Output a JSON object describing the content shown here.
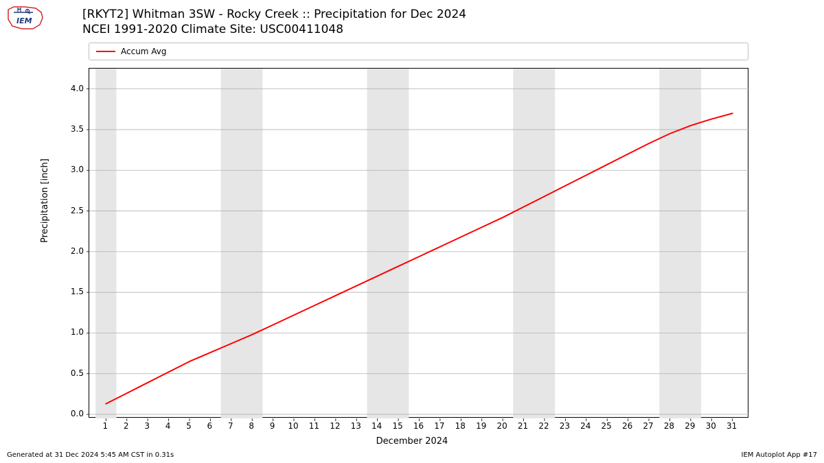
{
  "logo_text": "IEM",
  "logo_colors": {
    "outline": "#d62728",
    "symbol": "#1f3a7a",
    "text": "#1f3a7a"
  },
  "title_line1": "[RKYT2] Whitman 3SW - Rocky Creek :: Precipitation for Dec 2024",
  "title_line2": "NCEI 1991-2020 Climate Site: USC00411048",
  "legend": {
    "label": "Accum Avg",
    "color": "#ff0000",
    "line_width": 2
  },
  "chart": {
    "type": "line",
    "x_label": "December 2024",
    "y_label": "Precipitation [inch]",
    "background_color": "#ffffff",
    "grid_color": "#b0b0b0",
    "weekend_band_color": "#e6e6e6",
    "axis_color": "#000000",
    "tick_fontsize": 12,
    "label_fontsize": 13,
    "title_fontsize": 17,
    "xlim": [
      0.2,
      31.8
    ],
    "ylim": [
      -0.05,
      4.25
    ],
    "x_ticks": [
      1,
      2,
      3,
      4,
      5,
      6,
      7,
      8,
      9,
      10,
      11,
      12,
      13,
      14,
      15,
      16,
      17,
      18,
      19,
      20,
      21,
      22,
      23,
      24,
      25,
      26,
      27,
      28,
      29,
      30,
      31
    ],
    "y_ticks": [
      0.0,
      0.5,
      1.0,
      1.5,
      2.0,
      2.5,
      3.0,
      3.5,
      4.0
    ],
    "y_tick_labels": [
      "0.0",
      "0.5",
      "1.0",
      "1.5",
      "2.0",
      "2.5",
      "3.0",
      "3.5",
      "4.0"
    ],
    "weekend_bands": [
      [
        1,
        1
      ],
      [
        7,
        8
      ],
      [
        14,
        15
      ],
      [
        21,
        22
      ],
      [
        28,
        29
      ]
    ],
    "series": {
      "x": [
        1,
        2,
        3,
        4,
        5,
        6,
        7,
        8,
        9,
        10,
        11,
        12,
        13,
        14,
        15,
        16,
        17,
        18,
        19,
        20,
        21,
        22,
        23,
        24,
        25,
        26,
        27,
        28,
        29,
        30,
        31
      ],
      "y": [
        0.13,
        0.26,
        0.39,
        0.52,
        0.65,
        0.76,
        0.87,
        0.98,
        1.1,
        1.22,
        1.34,
        1.46,
        1.58,
        1.7,
        1.82,
        1.94,
        2.06,
        2.18,
        2.3,
        2.42,
        2.55,
        2.68,
        2.81,
        2.94,
        3.07,
        3.2,
        3.33,
        3.45,
        3.55,
        3.63,
        3.7
      ],
      "color": "#ff0000",
      "line_width": 2
    }
  },
  "footer_left": "Generated at 31 Dec 2024 5:45 AM CST in 0.31s",
  "footer_right": "IEM Autoplot App #17"
}
